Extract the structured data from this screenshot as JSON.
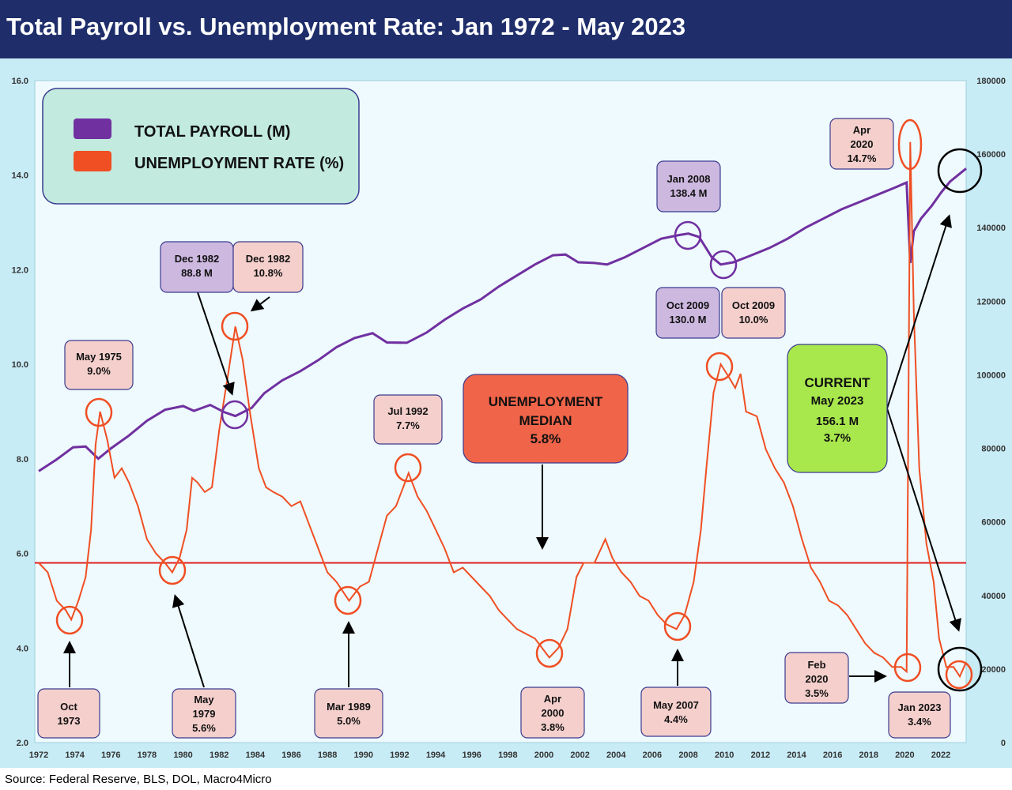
{
  "title": "Total Payroll vs. Unemployment Rate: Jan 1972 - May 2023",
  "source": "Source: Federal Reserve, BLS, DOL, Macro4Micro",
  "colors": {
    "payroll": "#7030a0",
    "unemployment": "#f04e23",
    "median": "#e02020",
    "title_bg": "#1f2e6b",
    "chart_bg": "#c8ecf6",
    "plot_bg": "#eefafd",
    "legend_bg": "#c2eadf",
    "purple_box": "#cdb8e0",
    "pink_box": "#f4cfcc",
    "median_box": "#f06449",
    "current_box": "#a8e84c",
    "box_border": "#3b3b8f"
  },
  "legend": {
    "payroll_label": "TOTAL PAYROLL (M)",
    "unemployment_label": "UNEMPLOYMENT RATE (%)"
  },
  "annotations": {
    "oct1973": [
      "Oct",
      "1973"
    ],
    "may1975": [
      "May 1975",
      "9.0%"
    ],
    "may1979": [
      "May",
      "1979",
      "5.6%"
    ],
    "dec1982_payroll": [
      "Dec 1982",
      "88.8 M"
    ],
    "dec1982_unemp": [
      "Dec 1982",
      "10.8%"
    ],
    "mar1989": [
      "Mar 1989",
      "5.0%"
    ],
    "jul1992": [
      "Jul 1992",
      "7.7%"
    ],
    "median": [
      "UNEMPLOYMENT",
      "MEDIAN",
      "5.8%"
    ],
    "apr2000": [
      "Apr",
      "2000",
      "3.8%"
    ],
    "may2007": [
      "May 2007",
      "4.4%"
    ],
    "jan2008": [
      "Jan 2008",
      "138.4 M"
    ],
    "oct2009_payroll": [
      "Oct 2009",
      "130.0 M"
    ],
    "oct2009_unemp": [
      "Oct 2009",
      "10.0%"
    ],
    "apr2020": [
      "Apr",
      "2020",
      "14.7%"
    ],
    "current": [
      "CURRENT",
      "May 2023",
      "156.1 M",
      "3.7%"
    ],
    "feb2020": [
      "Feb",
      "2020",
      "3.5%"
    ],
    "jan2023": [
      "Jan 2023",
      "3.4%"
    ]
  },
  "chart_data": {
    "type": "line",
    "title": "Total Payroll vs. Unemployment Rate: Jan 1972 - May 2023",
    "x_ticks": [
      "1972",
      "1974",
      "1976",
      "1978",
      "1980",
      "1982",
      "1984",
      "1986",
      "1988",
      "1990",
      "1992",
      "1994",
      "1996",
      "1998",
      "2000",
      "2002",
      "2004",
      "2006",
      "2008",
      "2010",
      "2012",
      "2014",
      "2016",
      "2018",
      "2020",
      "2022"
    ],
    "xlim": [
      1972,
      2023.4
    ],
    "y_left_ticks": [
      "2.0",
      "4.0",
      "6.0",
      "8.0",
      "10.0",
      "12.0",
      "14.0",
      "16.0"
    ],
    "y_left_lim": [
      2,
      16
    ],
    "y_right_ticks": [
      "0",
      "20000",
      "40000",
      "60000",
      "80000",
      "100000",
      "120000",
      "140000",
      "160000",
      "180000"
    ],
    "y_right_lim": [
      0,
      180000
    ],
    "grid": false,
    "legend_position": "top-left",
    "median_unemployment": 5.8,
    "series": [
      {
        "name": "TOTAL PAYROLL (M)",
        "axis": "right",
        "points": [
          [
            1972.0,
            73800
          ],
          [
            1973.0,
            77000
          ],
          [
            1973.9,
            80300
          ],
          [
            1974.6,
            80500
          ],
          [
            1975.3,
            77200
          ],
          [
            1976.0,
            80000
          ],
          [
            1977.0,
            83500
          ],
          [
            1978.0,
            87500
          ],
          [
            1979.0,
            90500
          ],
          [
            1980.0,
            91500
          ],
          [
            1980.6,
            90200
          ],
          [
            1981.5,
            91800
          ],
          [
            1982.3,
            89800
          ],
          [
            1982.9,
            88800
          ],
          [
            1983.8,
            91000
          ],
          [
            1984.5,
            95000
          ],
          [
            1985.5,
            98500
          ],
          [
            1986.5,
            101000
          ],
          [
            1987.5,
            104000
          ],
          [
            1988.5,
            107500
          ],
          [
            1989.5,
            110000
          ],
          [
            1990.5,
            111300
          ],
          [
            1991.3,
            108800
          ],
          [
            1992.4,
            108700
          ],
          [
            1993.5,
            111500
          ],
          [
            1994.5,
            115000
          ],
          [
            1995.5,
            118000
          ],
          [
            1996.5,
            120500
          ],
          [
            1997.5,
            124000
          ],
          [
            1998.5,
            127000
          ],
          [
            1999.5,
            130000
          ],
          [
            2000.5,
            132500
          ],
          [
            2001.2,
            132700
          ],
          [
            2001.9,
            130600
          ],
          [
            2002.8,
            130400
          ],
          [
            2003.5,
            130000
          ],
          [
            2004.5,
            132000
          ],
          [
            2005.5,
            134500
          ],
          [
            2006.5,
            137000
          ],
          [
            2007.5,
            138000
          ],
          [
            2008.0,
            138400
          ],
          [
            2008.6,
            137500
          ],
          [
            2009.3,
            132000
          ],
          [
            2009.8,
            130000
          ],
          [
            2010.5,
            130600
          ],
          [
            2011.5,
            132500
          ],
          [
            2012.5,
            134500
          ],
          [
            2013.5,
            137000
          ],
          [
            2014.5,
            140000
          ],
          [
            2015.5,
            142500
          ],
          [
            2016.5,
            145000
          ],
          [
            2017.5,
            147000
          ],
          [
            2018.5,
            149000
          ],
          [
            2019.5,
            151000
          ],
          [
            2020.1,
            152300
          ],
          [
            2020.3,
            130400
          ],
          [
            2020.5,
            139000
          ],
          [
            2020.9,
            142500
          ],
          [
            2021.5,
            146000
          ],
          [
            2022.0,
            149500
          ],
          [
            2022.5,
            152500
          ],
          [
            2023.0,
            154500
          ],
          [
            2023.4,
            156100
          ]
        ]
      },
      {
        "name": "UNEMPLOYMENT RATE (%)",
        "axis": "left",
        "points": [
          [
            1972.0,
            5.8
          ],
          [
            1972.5,
            5.6
          ],
          [
            1973.0,
            5.0
          ],
          [
            1973.5,
            4.8
          ],
          [
            1973.8,
            4.6
          ],
          [
            1974.2,
            5.0
          ],
          [
            1974.6,
            5.5
          ],
          [
            1974.9,
            6.5
          ],
          [
            1975.15,
            8.3
          ],
          [
            1975.4,
            9.0
          ],
          [
            1975.8,
            8.4
          ],
          [
            1976.2,
            7.6
          ],
          [
            1976.6,
            7.8
          ],
          [
            1977.0,
            7.5
          ],
          [
            1977.5,
            7.0
          ],
          [
            1978.0,
            6.3
          ],
          [
            1978.5,
            6.0
          ],
          [
            1979.0,
            5.8
          ],
          [
            1979.4,
            5.6
          ],
          [
            1979.8,
            5.9
          ],
          [
            1980.2,
            6.5
          ],
          [
            1980.5,
            7.6
          ],
          [
            1980.8,
            7.5
          ],
          [
            1981.2,
            7.3
          ],
          [
            1981.6,
            7.4
          ],
          [
            1982.0,
            8.6
          ],
          [
            1982.5,
            9.8
          ],
          [
            1982.9,
            10.8
          ],
          [
            1983.3,
            10.1
          ],
          [
            1983.7,
            9.0
          ],
          [
            1984.2,
            7.8
          ],
          [
            1984.6,
            7.4
          ],
          [
            1985.0,
            7.3
          ],
          [
            1985.5,
            7.2
          ],
          [
            1986.0,
            7.0
          ],
          [
            1986.5,
            7.1
          ],
          [
            1987.0,
            6.6
          ],
          [
            1987.5,
            6.1
          ],
          [
            1988.0,
            5.6
          ],
          [
            1988.5,
            5.4
          ],
          [
            1989.2,
            5.0
          ],
          [
            1989.8,
            5.3
          ],
          [
            1990.3,
            5.4
          ],
          [
            1990.8,
            6.1
          ],
          [
            1991.3,
            6.8
          ],
          [
            1991.8,
            7.0
          ],
          [
            1992.5,
            7.7
          ],
          [
            1993.0,
            7.2
          ],
          [
            1993.5,
            6.9
          ],
          [
            1994.0,
            6.5
          ],
          [
            1994.5,
            6.1
          ],
          [
            1995.0,
            5.6
          ],
          [
            1995.5,
            5.7
          ],
          [
            1996.0,
            5.5
          ],
          [
            1996.5,
            5.3
          ],
          [
            1997.0,
            5.1
          ],
          [
            1997.5,
            4.8
          ],
          [
            1998.0,
            4.6
          ],
          [
            1998.5,
            4.4
          ],
          [
            1999.0,
            4.3
          ],
          [
            1999.5,
            4.2
          ],
          [
            2000.3,
            3.8
          ],
          [
            2000.8,
            4.0
          ],
          [
            2001.3,
            4.4
          ],
          [
            2001.8,
            5.5
          ],
          [
            2002.2,
            5.8
          ],
          [
            2002.8,
            5.8
          ],
          [
            2003.4,
            6.3
          ],
          [
            2003.8,
            5.9
          ],
          [
            2004.3,
            5.6
          ],
          [
            2004.8,
            5.4
          ],
          [
            2005.3,
            5.1
          ],
          [
            2005.8,
            5.0
          ],
          [
            2006.3,
            4.7
          ],
          [
            2006.8,
            4.5
          ],
          [
            2007.35,
            4.4
          ],
          [
            2007.8,
            4.7
          ],
          [
            2008.3,
            5.4
          ],
          [
            2008.7,
            6.5
          ],
          [
            2009.0,
            7.8
          ],
          [
            2009.4,
            9.4
          ],
          [
            2009.8,
            10.0
          ],
          [
            2010.3,
            9.7
          ],
          [
            2010.6,
            9.5
          ],
          [
            2010.9,
            9.8
          ],
          [
            2011.2,
            9.0
          ],
          [
            2011.8,
            8.9
          ],
          [
            2012.3,
            8.2
          ],
          [
            2012.8,
            7.8
          ],
          [
            2013.3,
            7.5
          ],
          [
            2013.8,
            7.0
          ],
          [
            2014.3,
            6.3
          ],
          [
            2014.8,
            5.7
          ],
          [
            2015.3,
            5.4
          ],
          [
            2015.8,
            5.0
          ],
          [
            2016.3,
            4.9
          ],
          [
            2016.8,
            4.7
          ],
          [
            2017.3,
            4.4
          ],
          [
            2017.8,
            4.1
          ],
          [
            2018.3,
            3.9
          ],
          [
            2018.8,
            3.8
          ],
          [
            2019.3,
            3.6
          ],
          [
            2019.8,
            3.6
          ],
          [
            2020.1,
            3.5
          ],
          [
            2020.3,
            14.7
          ],
          [
            2020.5,
            11.1
          ],
          [
            2020.8,
            7.8
          ],
          [
            2021.2,
            6.2
          ],
          [
            2021.6,
            5.4
          ],
          [
            2021.9,
            4.2
          ],
          [
            2022.3,
            3.6
          ],
          [
            2022.7,
            3.6
          ],
          [
            2023.05,
            3.4
          ],
          [
            2023.4,
            3.7
          ]
        ]
      }
    ]
  }
}
